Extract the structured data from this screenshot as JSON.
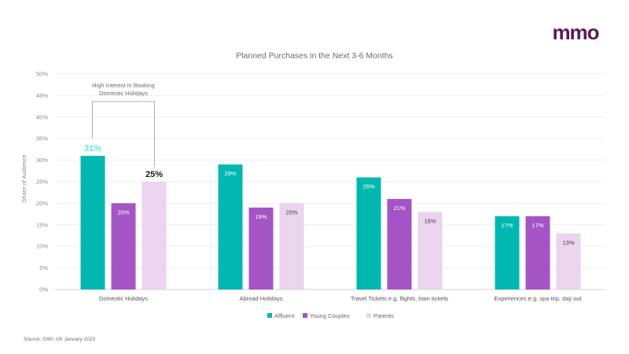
{
  "brand": {
    "logo_text": "mmo",
    "color": "#5b1a55"
  },
  "chart_data": {
    "type": "bar",
    "title": "Planned Purchases in the Next 3-6 Months",
    "xlabel": "",
    "ylabel": "Share of Audience",
    "ylim": [
      0,
      50
    ],
    "yticks": [
      "0%",
      "5%",
      "10%",
      "15%",
      "20%",
      "25%",
      "30%",
      "35%",
      "40%",
      "45%",
      "50%"
    ],
    "yvalues": [
      0,
      5,
      10,
      15,
      20,
      25,
      30,
      35,
      40,
      45,
      50
    ],
    "categories": [
      "Domestic Holidays",
      "Abroad Holidays",
      "Travel Tickets e.g. flights, train tickets",
      "Experiences e.g. spa trip, day out"
    ],
    "series": [
      {
        "name": "Affluent",
        "color": "#00b8b0",
        "values": [
          31,
          29,
          26,
          17
        ],
        "labels": [
          "31%",
          "29%",
          "26%",
          "17%"
        ]
      },
      {
        "name": "Young Couples",
        "color": "#a454c4",
        "values": [
          20,
          19,
          21,
          17
        ],
        "labels": [
          "20%",
          "19%",
          "21%",
          "17%"
        ]
      },
      {
        "name": "Parents",
        "color": "#ead4ee",
        "values": [
          25,
          20,
          18,
          13
        ],
        "labels": [
          "25%",
          "20%",
          "18%",
          "13%"
        ]
      }
    ],
    "grid": true,
    "legend_position": "bottom-center",
    "annotation": {
      "lines": [
        "High Interest in Booking",
        "Domestic Holidays"
      ],
      "category": "Domestic Holidays"
    }
  },
  "source": "Source: GWI, UK January 2023"
}
